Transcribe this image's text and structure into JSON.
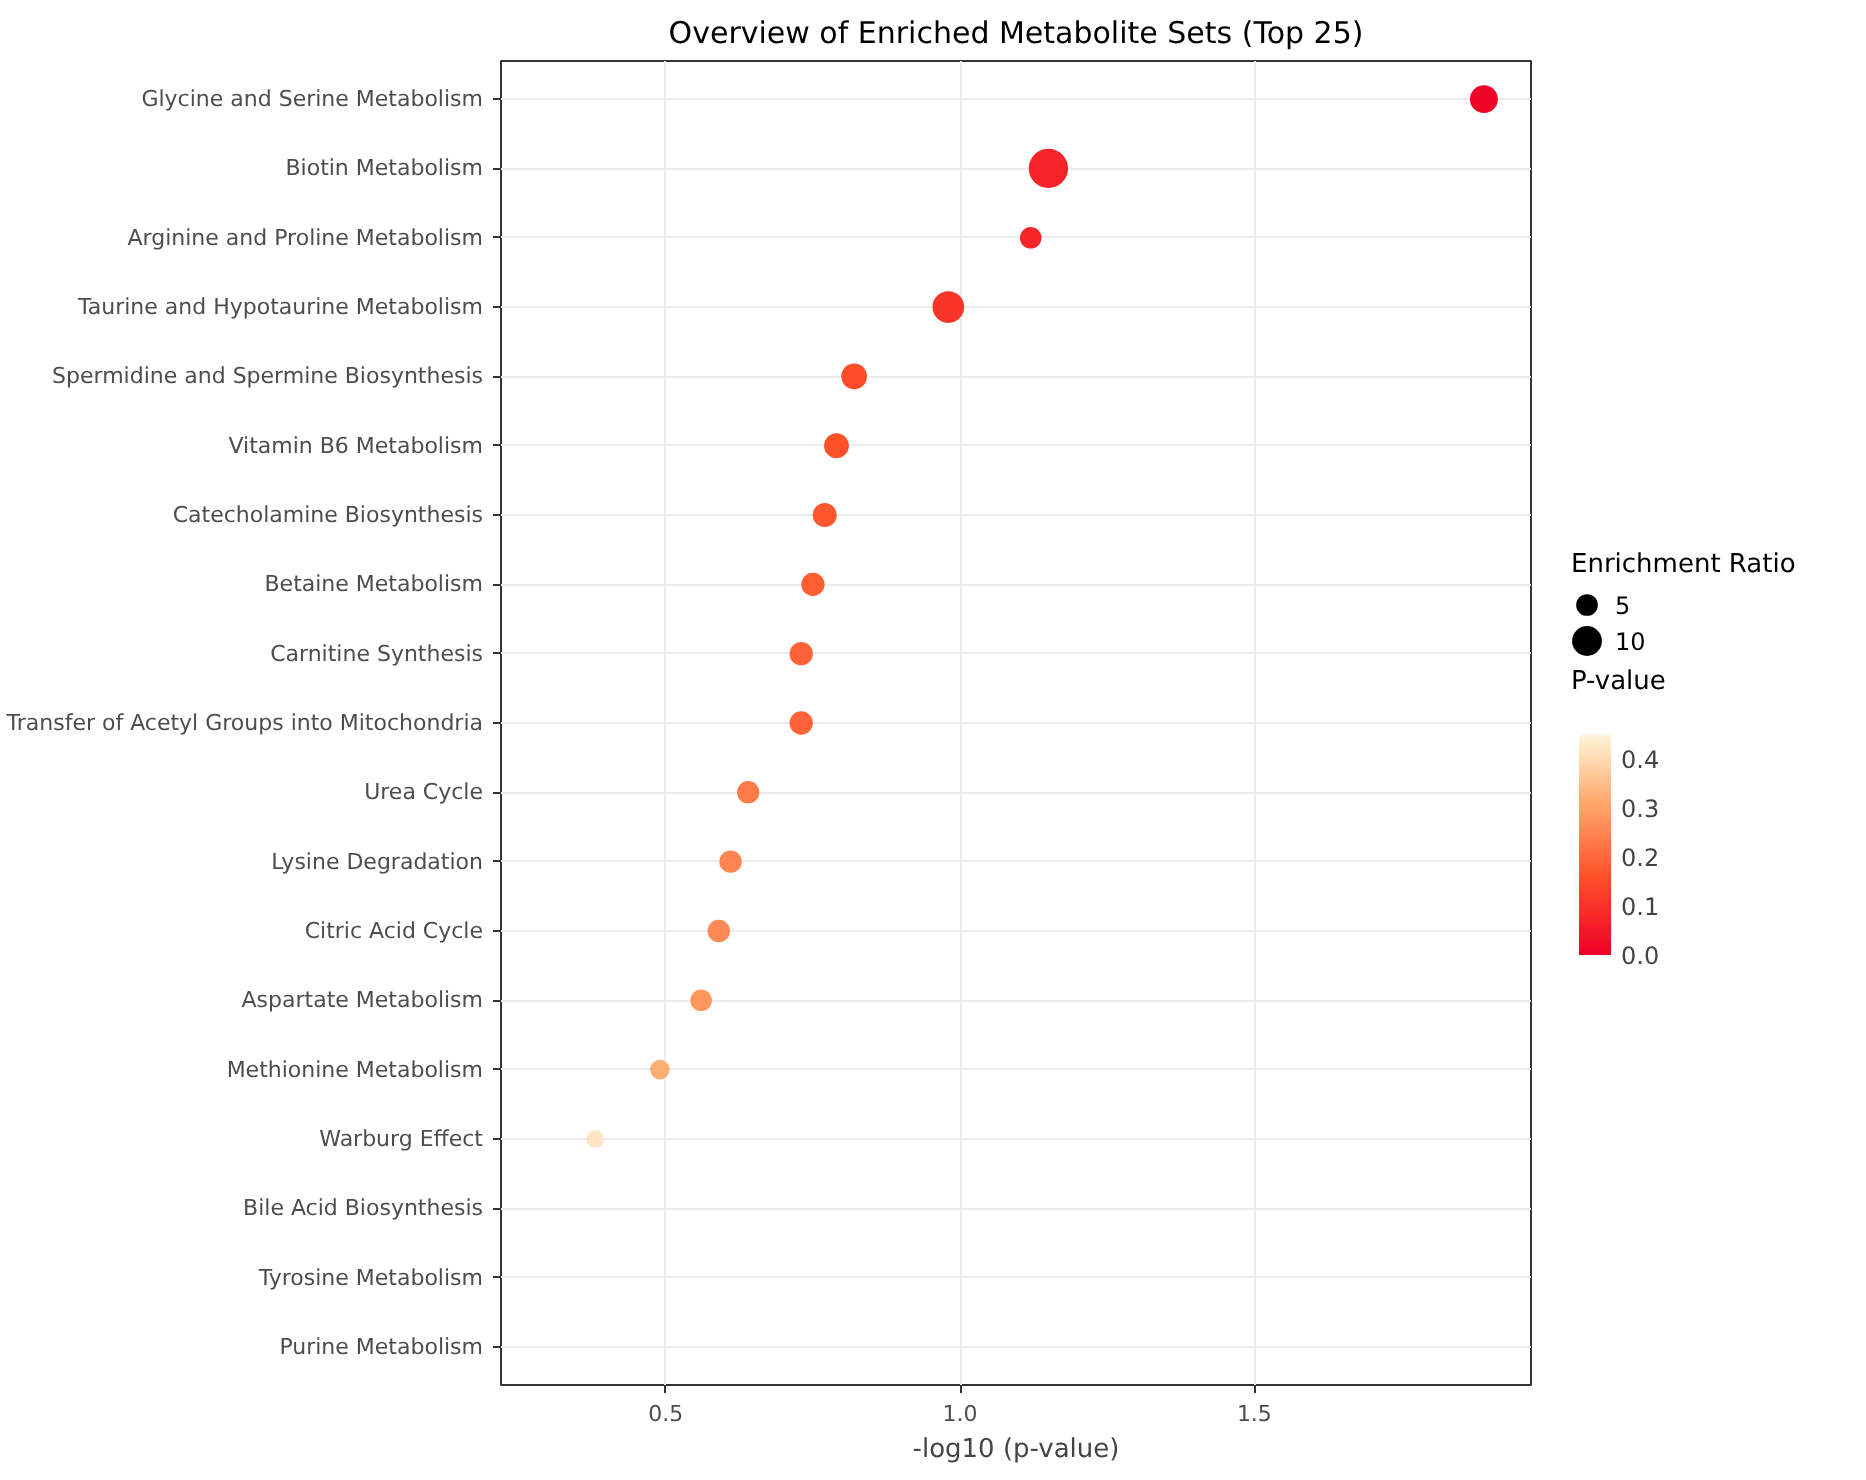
{
  "chart_data": {
    "type": "bubble",
    "title": "Overview of Enriched Metabolite Sets (Top 25)",
    "xlabel": "-log10 (p-value)",
    "categories": [
      "Glycine and Serine Metabolism",
      "Biotin Metabolism",
      "Arginine and Proline Metabolism",
      "Taurine and Hypotaurine Metabolism",
      "Spermidine and Spermine Biosynthesis",
      "Vitamin B6 Metabolism",
      "Catecholamine Biosynthesis",
      "Betaine Metabolism",
      "Carnitine Synthesis",
      "Transfer of Acetyl Groups into Mitochondria",
      "Urea Cycle",
      "Lysine Degradation",
      "Citric Acid Cycle",
      "Aspartate Metabolism",
      "Methionine Metabolism",
      "Warburg Effect",
      "Bile Acid Biosynthesis",
      "Tyrosine Metabolism",
      "Purine Metabolism"
    ],
    "orientation": "horizontal",
    "values": [
      1.89,
      1.15,
      1.12,
      0.98,
      0.82,
      0.79,
      0.77,
      0.75,
      0.73,
      0.73,
      0.64,
      0.61,
      0.59,
      0.56,
      0.49,
      0.38,
      null,
      null,
      null
    ],
    "sizes": [
      10,
      20,
      6,
      13,
      8.5,
      8,
      7.5,
      7,
      7,
      7,
      6.5,
      6.5,
      6.5,
      6,
      5,
      4,
      null,
      null,
      null
    ],
    "size_legend": [
      5,
      10
    ],
    "cvalues": [
      0.013,
      0.071,
      0.076,
      0.105,
      0.15,
      0.16,
      0.17,
      0.18,
      0.19,
      0.19,
      0.23,
      0.25,
      0.26,
      0.28,
      0.32,
      0.42,
      null,
      null,
      null
    ],
    "legend_title": "Enrichment Ratio",
    "clabel": "P-value",
    "clim": [
      0,
      0.45
    ],
    "cticks": [
      {
        "value": 0,
        "label": "0.0"
      },
      0.1,
      0.2,
      0.3,
      0.4
    ],
    "xlim": [
      0.22,
      1.97
    ],
    "xticks": [
      0.5,
      {
        "value": 1,
        "label": "1.0"
      },
      1.5
    ],
    "grid": true
  }
}
